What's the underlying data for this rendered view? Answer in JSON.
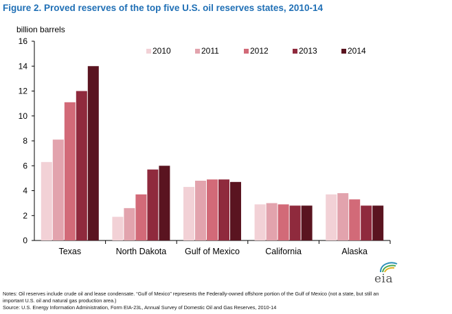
{
  "figure_title": "Figure 2. Proved reserves of the top five U.S. oil reserves states, 2010-14",
  "notes": {
    "line1": "Notes: Oil reserves include crude oil and lease condensate. “Gulf of Mexico” represents the Federally-owned offshore portion of the Gulf of Mexico (not a state, but still an",
    "line2": "important U.S. oil and natural gas production area.)",
    "source": "Source: U.S. Energy Information Administration, Form EIA-23L, Annual Survey of Domestic Oil and Gas Reserves, 2010-14"
  },
  "logo": {
    "text": "eia"
  },
  "colors": [
    "#f2d1d6",
    "#e2a3ad",
    "#d26a78",
    "#8f2a3d",
    "#5a1420"
  ],
  "chart_data": {
    "type": "bar",
    "title": "",
    "ylabel": "billion barrels",
    "xlabel": "",
    "ylim": [
      0,
      16
    ],
    "yticks": [
      0,
      2,
      4,
      6,
      8,
      10,
      12,
      14,
      16
    ],
    "categories": [
      "Texas",
      "North Dakota",
      "Gulf of Mexico",
      "California",
      "Alaska"
    ],
    "legend_position": "top",
    "grid": false,
    "series": [
      {
        "name": "2010",
        "values": [
          6.3,
          1.9,
          4.3,
          2.9,
          3.7
        ]
      },
      {
        "name": "2011",
        "values": [
          8.1,
          2.6,
          4.8,
          3.0,
          3.8
        ]
      },
      {
        "name": "2012",
        "values": [
          11.1,
          3.7,
          4.9,
          2.9,
          3.3
        ]
      },
      {
        "name": "2013",
        "values": [
          12.0,
          5.7,
          4.9,
          2.8,
          2.8
        ]
      },
      {
        "name": "2014",
        "values": [
          14.0,
          6.0,
          4.7,
          2.8,
          2.8
        ]
      }
    ]
  }
}
